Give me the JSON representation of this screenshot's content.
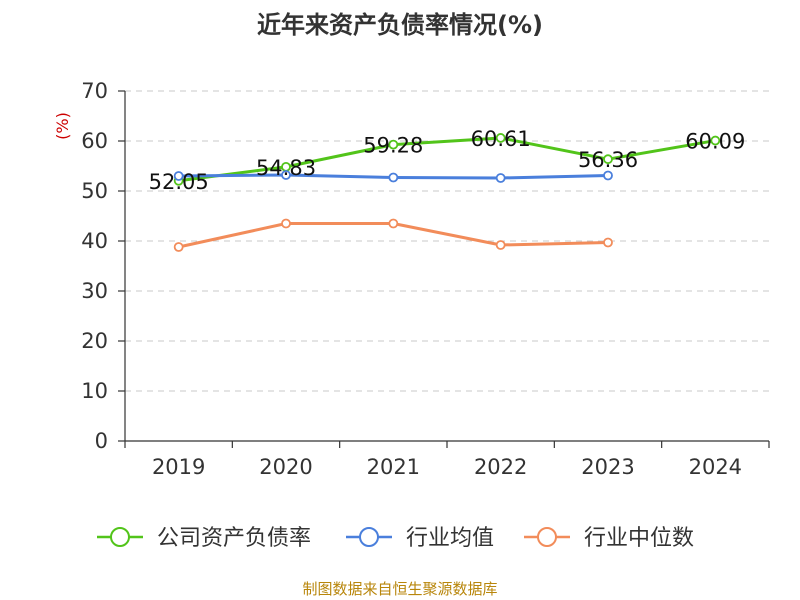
{
  "chart_data": {
    "type": "line",
    "title": "近年来资产负债率情况(%)",
    "ylabel": "(%)",
    "categories": [
      "2019",
      "2020",
      "2021",
      "2022",
      "2023",
      "2024"
    ],
    "ylim": [
      0,
      70
    ],
    "yticks": [
      0,
      10,
      20,
      30,
      40,
      50,
      60,
      70
    ],
    "grid": true,
    "legend_position": "bottom",
    "series": [
      {
        "name": "公司资产负债率",
        "color": "#52c41a",
        "values": [
          52.05,
          54.83,
          59.28,
          60.61,
          56.36,
          60.09
        ],
        "labels": [
          "52.05",
          "54.83",
          "59.28",
          "60.61",
          "56.36",
          "60.09"
        ]
      },
      {
        "name": "行业均值",
        "color": "#4a7fdc",
        "values": [
          53.0,
          53.2,
          52.7,
          52.6,
          53.1,
          null
        ]
      },
      {
        "name": "行业中位数",
        "color": "#f28c5a",
        "values": [
          38.8,
          43.5,
          43.5,
          39.2,
          39.7,
          null
        ]
      }
    ]
  },
  "ylabel_color": "#cc0000",
  "source": {
    "text": "制图数据来自恒生聚源数据库",
    "color": "#b8860b"
  }
}
